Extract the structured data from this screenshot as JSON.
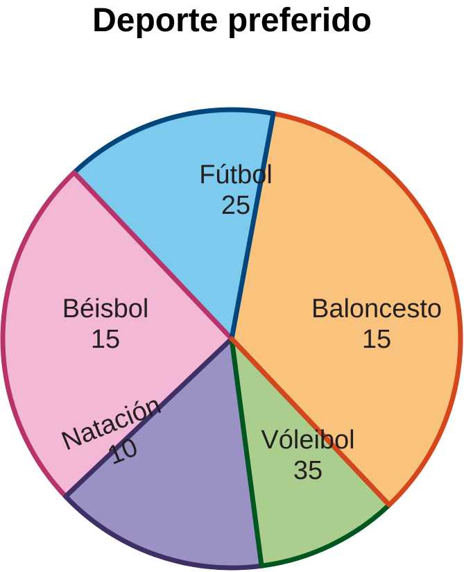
{
  "chart_data": {
    "type": "pie",
    "title": "Deporte preferido",
    "slices": [
      {
        "label": "Fútbol",
        "value": 25,
        "fill": "#f3b8d5",
        "stroke": "#b8336a"
      },
      {
        "label": "Baloncesto",
        "value": 15,
        "fill": "#7ccaee",
        "stroke": "#00457c"
      },
      {
        "label": "Vóleibol",
        "value": 35,
        "fill": "#f9c27d",
        "stroke": "#d6461d"
      },
      {
        "label": "Natación",
        "value": 10,
        "fill": "#abce8e",
        "stroke": "#00561f"
      },
      {
        "label": "Béisbol",
        "value": 15,
        "fill": "#9a92c4",
        "stroke": "#3e2f66"
      }
    ]
  }
}
